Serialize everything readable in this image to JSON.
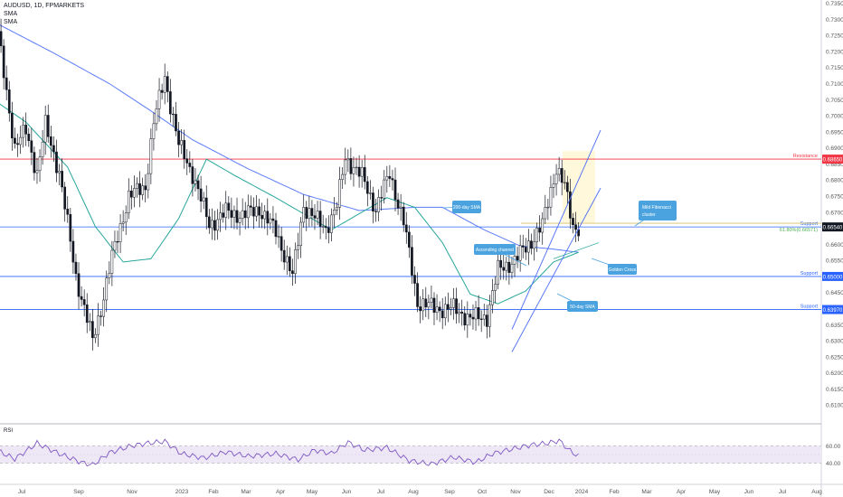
{
  "header": {
    "symbol": "AUDUSD, 1D, FPMARKETS",
    "ind1": "SMA",
    "ind2": "SMA"
  },
  "colors": {
    "bull": "#ffffff",
    "bear": "#131722",
    "resistance": "#f23645",
    "support": "#2962ff",
    "sma200": "#5b7cfa",
    "sma50": "#26a69a",
    "note_bg": "#4aa3df",
    "fib": "#4caf50",
    "rsi_line": "#7e57c2",
    "rsi_band": "#ede7f6",
    "axis_text": "#555555"
  },
  "chart_data": {
    "type": "candlestick",
    "title": "AUDUSD, 1D, FPMARKETS",
    "ylim": [
      0.605,
      0.736
    ],
    "y_ticks": [
      "0.73500",
      "0.73000",
      "0.72500",
      "0.72000",
      "0.71500",
      "0.71000",
      "0.70500",
      "0.70000",
      "0.69500",
      "0.69000",
      "0.68500",
      "0.68000",
      "0.67500",
      "0.67000",
      "0.66500",
      "0.66000",
      "0.65500",
      "0.65000",
      "0.64500",
      "0.64000",
      "0.63500",
      "0.63000",
      "0.62500",
      "0.62000",
      "0.61500",
      "0.61000"
    ],
    "x_ticks": [
      "Jul",
      "Sep",
      "Nov",
      "2023",
      "Feb",
      "Mar",
      "Apr",
      "May",
      "Jun",
      "Jul",
      "Aug",
      "Sep",
      "Oct",
      "Nov",
      "Dec",
      "2024",
      "Feb",
      "Mar",
      "Apr",
      "May",
      "Jun",
      "Jul",
      "Aug"
    ],
    "price_path": [
      {
        "t": 0,
        "p": 0.725
      },
      {
        "t": 6,
        "p": 0.69
      },
      {
        "t": 10,
        "p": 0.6955
      },
      {
        "t": 14,
        "p": 0.682
      },
      {
        "t": 17,
        "p": 0.697
      },
      {
        "t": 22,
        "p": 0.6825
      },
      {
        "t": 28,
        "p": 0.65
      },
      {
        "t": 34,
        "p": 0.63
      },
      {
        "t": 37,
        "p": 0.64
      },
      {
        "t": 41,
        "p": 0.656
      },
      {
        "t": 47,
        "p": 0.675
      },
      {
        "t": 53,
        "p": 0.678
      },
      {
        "t": 56,
        "p": 0.698
      },
      {
        "t": 60,
        "p": 0.712
      },
      {
        "t": 65,
        "p": 0.691
      },
      {
        "t": 70,
        "p": 0.682
      },
      {
        "t": 76,
        "p": 0.666
      },
      {
        "t": 82,
        "p": 0.67
      },
      {
        "t": 88,
        "p": 0.669
      },
      {
        "t": 94,
        "p": 0.671
      },
      {
        "t": 100,
        "p": 0.664
      },
      {
        "t": 106,
        "p": 0.65
      },
      {
        "t": 110,
        "p": 0.672
      },
      {
        "t": 114,
        "p": 0.668
      },
      {
        "t": 118,
        "p": 0.665
      },
      {
        "t": 122,
        "p": 0.672
      },
      {
        "t": 125,
        "p": 0.687
      },
      {
        "t": 131,
        "p": 0.681
      },
      {
        "t": 136,
        "p": 0.671
      },
      {
        "t": 141,
        "p": 0.682
      },
      {
        "t": 146,
        "p": 0.667
      },
      {
        "t": 151,
        "p": 0.642
      },
      {
        "t": 158,
        "p": 0.64
      },
      {
        "t": 164,
        "p": 0.64
      },
      {
        "t": 170,
        "p": 0.637
      },
      {
        "t": 176,
        "p": 0.6375
      },
      {
        "t": 180,
        "p": 0.652
      },
      {
        "t": 186,
        "p": 0.655
      },
      {
        "t": 192,
        "p": 0.661
      },
      {
        "t": 196,
        "p": 0.666
      },
      {
        "t": 201,
        "p": 0.684
      },
      {
        "t": 204,
        "p": 0.678
      },
      {
        "t": 207,
        "p": 0.6655
      },
      {
        "t": 209,
        "p": 0.6654
      }
    ],
    "series": [
      {
        "name": "SMA",
        "points": [
          {
            "t": 0,
            "p": 0.7285
          },
          {
            "t": 20,
            "p": 0.7195
          },
          {
            "t": 40,
            "p": 0.71
          },
          {
            "t": 55,
            "p": 0.7015
          },
          {
            "t": 70,
            "p": 0.6925
          },
          {
            "t": 90,
            "p": 0.6835
          },
          {
            "t": 110,
            "p": 0.6755
          },
          {
            "t": 130,
            "p": 0.6705
          },
          {
            "t": 150,
            "p": 0.6715
          },
          {
            "t": 160,
            "p": 0.6715
          },
          {
            "t": 175,
            "p": 0.6645
          },
          {
            "t": 188,
            "p": 0.6595
          },
          {
            "t": 200,
            "p": 0.6585
          },
          {
            "t": 209,
            "p": 0.6575
          }
        ]
      },
      {
        "name": "SMA",
        "points": [
          {
            "t": 0,
            "p": 0.704
          },
          {
            "t": 10,
            "p": 0.698
          },
          {
            "t": 25,
            "p": 0.684
          },
          {
            "t": 35,
            "p": 0.6655
          },
          {
            "t": 45,
            "p": 0.6545
          },
          {
            "t": 55,
            "p": 0.6555
          },
          {
            "t": 65,
            "p": 0.668
          },
          {
            "t": 75,
            "p": 0.6865
          },
          {
            "t": 85,
            "p": 0.6815
          },
          {
            "t": 100,
            "p": 0.6745
          },
          {
            "t": 120,
            "p": 0.6645
          },
          {
            "t": 140,
            "p": 0.6745
          },
          {
            "t": 150,
            "p": 0.6715
          },
          {
            "t": 160,
            "p": 0.6605
          },
          {
            "t": 170,
            "p": 0.6445
          },
          {
            "t": 180,
            "p": 0.6415
          },
          {
            "t": 190,
            "p": 0.6455
          },
          {
            "t": 200,
            "p": 0.6545
          },
          {
            "t": 209,
            "p": 0.6575
          }
        ]
      }
    ],
    "levels": [
      {
        "label": "Resistance",
        "price_label": "0.68650",
        "price": 0.6865,
        "kind": "resistance"
      },
      {
        "label": "Support",
        "price_label": "0.66540",
        "price": 0.6654,
        "kind": "current"
      },
      {
        "label": "Support",
        "price_label": "0.65000",
        "price": 0.65,
        "kind": "support"
      },
      {
        "label": "Support",
        "price_label": "0.63970",
        "price": 0.6397,
        "kind": "support"
      }
    ],
    "fib_label": "61.80%(0.66571)",
    "annotations": [
      "200-day SMA",
      "Mild Fibonacci cluster",
      "Ascending channel",
      "Golden Cross",
      "50-day SMA"
    ],
    "rsi": {
      "label": "RSI",
      "levels": [
        60,
        40
      ],
      "tick_labels": [
        "60.00",
        "40.00"
      ],
      "points": [
        {
          "t": 0,
          "v": 54
        },
        {
          "t": 6,
          "v": 45
        },
        {
          "t": 14,
          "v": 63
        },
        {
          "t": 22,
          "v": 51
        },
        {
          "t": 30,
          "v": 41
        },
        {
          "t": 34,
          "v": 38
        },
        {
          "t": 40,
          "v": 52
        },
        {
          "t": 48,
          "v": 60
        },
        {
          "t": 54,
          "v": 63
        },
        {
          "t": 60,
          "v": 65
        },
        {
          "t": 66,
          "v": 51
        },
        {
          "t": 74,
          "v": 46
        },
        {
          "t": 82,
          "v": 53
        },
        {
          "t": 90,
          "v": 48
        },
        {
          "t": 100,
          "v": 51
        },
        {
          "t": 108,
          "v": 44
        },
        {
          "t": 114,
          "v": 55
        },
        {
          "t": 120,
          "v": 51
        },
        {
          "t": 126,
          "v": 64
        },
        {
          "t": 132,
          "v": 55
        },
        {
          "t": 140,
          "v": 58
        },
        {
          "t": 148,
          "v": 43
        },
        {
          "t": 156,
          "v": 39
        },
        {
          "t": 164,
          "v": 47
        },
        {
          "t": 172,
          "v": 41
        },
        {
          "t": 178,
          "v": 51
        },
        {
          "t": 186,
          "v": 57
        },
        {
          "t": 192,
          "v": 61
        },
        {
          "t": 198,
          "v": 63
        },
        {
          "t": 202,
          "v": 66
        },
        {
          "t": 206,
          "v": 54
        },
        {
          "t": 209,
          "v": 48
        }
      ]
    }
  }
}
